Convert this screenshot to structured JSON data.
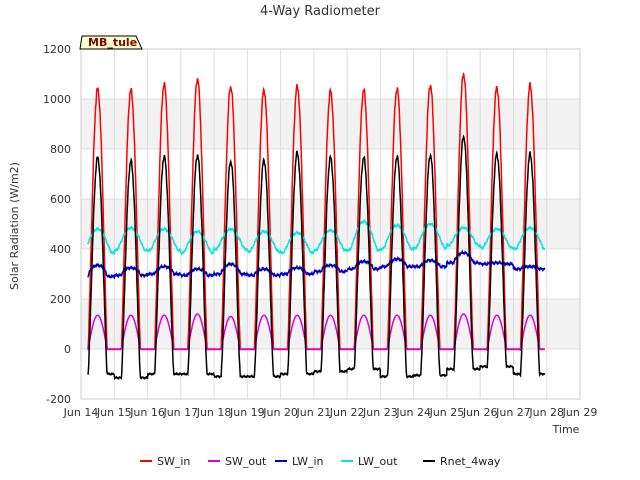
{
  "chart_data": {
    "type": "line",
    "title": "4-Way Radiometer",
    "xlabel": "Time",
    "ylabel": "Solar Radiation (W/m2)",
    "badge": "MB_tule",
    "ylim": [
      -200,
      1200
    ],
    "yticks": [
      -200,
      0,
      200,
      400,
      600,
      800,
      1000,
      1200
    ],
    "xlim": [
      14,
      29
    ],
    "xticks": [
      14,
      15,
      16,
      17,
      18,
      19,
      20,
      21,
      22,
      23,
      24,
      25,
      26,
      27,
      28,
      29
    ],
    "xtick_labels": [
      "Jun 14",
      "Jun 15",
      "Jun 16",
      "Jun 17",
      "Jun 18",
      "Jun 19",
      "Jun 20",
      "Jun 21",
      "Jun 22",
      "Jun 23",
      "Jun 24",
      "Jun 25",
      "Jun 26",
      "Jun 27",
      "Jun 28",
      "Jun 29"
    ],
    "grid": true,
    "legend_position": "bottom",
    "daily_peaks": {
      "days": [
        "Jun 14",
        "Jun 15",
        "Jun 16",
        "Jun 17",
        "Jun 18",
        "Jun 19",
        "Jun 20",
        "Jun 21",
        "Jun 22",
        "Jun 23",
        "Jun 24",
        "Jun 25",
        "Jun 26",
        "Jun 27"
      ],
      "day_center": [
        14.5,
        15.5,
        16.5,
        17.5,
        18.5,
        19.5,
        20.5,
        21.5,
        22.5,
        23.5,
        24.5,
        25.5,
        26.5,
        27.5
      ],
      "SW_in_peak": [
        1040,
        1035,
        1060,
        1080,
        1050,
        1035,
        1050,
        1030,
        1035,
        1040,
        1055,
        1100,
        1045,
        1055
      ],
      "SW_out_peak": [
        135,
        135,
        135,
        140,
        130,
        135,
        135,
        135,
        135,
        135,
        135,
        140,
        135,
        135
      ],
      "Rnet_peak": [
        765,
        750,
        770,
        775,
        750,
        755,
        785,
        765,
        765,
        770,
        775,
        850,
        780,
        780
      ],
      "Rnet_night": [
        -100,
        -115,
        -100,
        -100,
        -110,
        -110,
        -100,
        -90,
        -80,
        -110,
        -105,
        -80,
        -70,
        -100
      ],
      "LW_in_base": [
        290,
        295,
        300,
        295,
        300,
        295,
        300,
        310,
        320,
        330,
        330,
        345,
        340,
        320
      ],
      "LW_in_day": [
        335,
        325,
        330,
        320,
        340,
        320,
        325,
        335,
        350,
        360,
        355,
        385,
        345,
        330
      ],
      "LW_out_night": [
        385,
        395,
        395,
        385,
        400,
        390,
        385,
        395,
        395,
        400,
        405,
        415,
        405,
        400
      ],
      "LW_out_peak": [
        480,
        485,
        480,
        470,
        480,
        470,
        465,
        475,
        510,
        495,
        500,
        485,
        480,
        485
      ]
    },
    "series": [
      {
        "name": "SW_in",
        "color": "#ff0000"
      },
      {
        "name": "SW_out",
        "color": "#dd00dd"
      },
      {
        "name": "LW_in",
        "color": "#0000cc"
      },
      {
        "name": "LW_out",
        "color": "#00e5e5"
      },
      {
        "name": "Rnet_4way",
        "color": "#000000"
      }
    ]
  }
}
